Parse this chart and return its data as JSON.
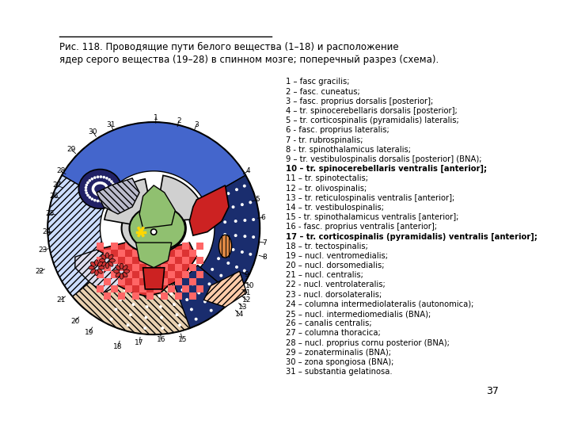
{
  "title_line1": "Рис. 118. Проводящие пути белого вещества (1–18) и расположение",
  "title_line2": "ядер серого вещества (19–28) в спинном мозге; поперечный разрез (схема).",
  "page_num": "37",
  "legend": [
    "1 – fasc gracilis;",
    "2 – fasc. cuneatus;",
    "3 – fasc. proprius dorsalis [posterior];",
    "4 – tr. spinocerebellaris dorsalis [posterior];",
    "5 – tr. corticospinalis (pyramidalis) lateralis;",
    "6 - fasc. proprius lateralis;",
    "7 - tr. rubrospinalis;",
    "8 - tr. spinothalamicus lateralis;",
    "9 – tr. vestibulospinalis dorsalis [posterior] (BNA);",
    "10 – tr. spinocerebellaris ventralis [anterior];",
    "11 – tr. spinotectalis;",
    "12 – tr. olivospinalis;",
    "13 – tr. reticulospinalis ventralis [anterior];",
    "14 – tr. vestibulospinalis;",
    "15 - tr. spinothalamicus ventralis [anterior];",
    "16 - fasc. proprius ventralis [anterior];",
    "17 – tr. corticospinalis (pyramidalis) ventralis [anterior];",
    "18 – tr. tectospinalis;",
    "19 – nucl. ventromedialis;",
    "20 – nucl. dorsomedialis;",
    "21 – nucl. centralis;",
    "22 - nucl. ventrolateralis;",
    "23 - nucl. dorsolateralis;",
    "24 – columna intermediolateralis (autonomica);",
    "25 – nucl. intermediomedialis (BNA);",
    "26 – canalis centralis;",
    "27 – columna thoracica;",
    "28 – nucl. proprius cornu posterior (BNA);",
    "29 – zonaterminalis (BNA);",
    "30 – zona spongiosa (BNA);",
    "31 – substantia gelatinosa."
  ],
  "background_color": "#ffffff",
  "border_color": "#000000"
}
